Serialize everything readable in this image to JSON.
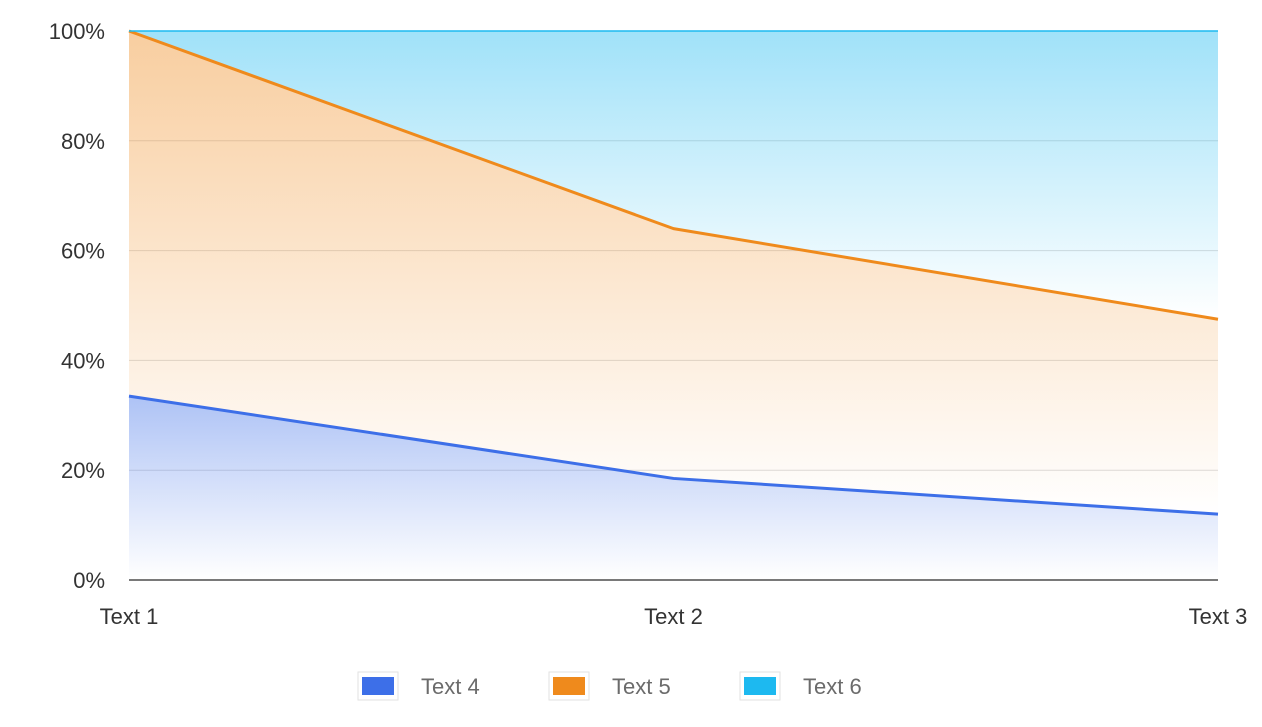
{
  "chart_data": {
    "type": "area",
    "stacked": "percent",
    "categories": [
      "Text 1",
      "Text 2",
      "Text 3"
    ],
    "series": [
      {
        "name": "Text 4",
        "color": "#3d6fe8",
        "values": [
          33.5,
          18.5,
          12
        ]
      },
      {
        "name": "Text 5",
        "color": "#ef8a1c",
        "values": [
          66.5,
          45.5,
          35.5
        ]
      },
      {
        "name": "Text 6",
        "color": "#1db9f0",
        "values": [
          0,
          36,
          52.5
        ]
      }
    ],
    "ylim": [
      0,
      100
    ],
    "yticks": [
      0,
      20,
      40,
      60,
      80,
      100
    ],
    "ytick_labels": [
      "0%",
      "20%",
      "40%",
      "60%",
      "80%",
      "100%"
    ],
    "grid": true,
    "legend": "bottom",
    "title": "",
    "xlabel": "",
    "ylabel": ""
  }
}
